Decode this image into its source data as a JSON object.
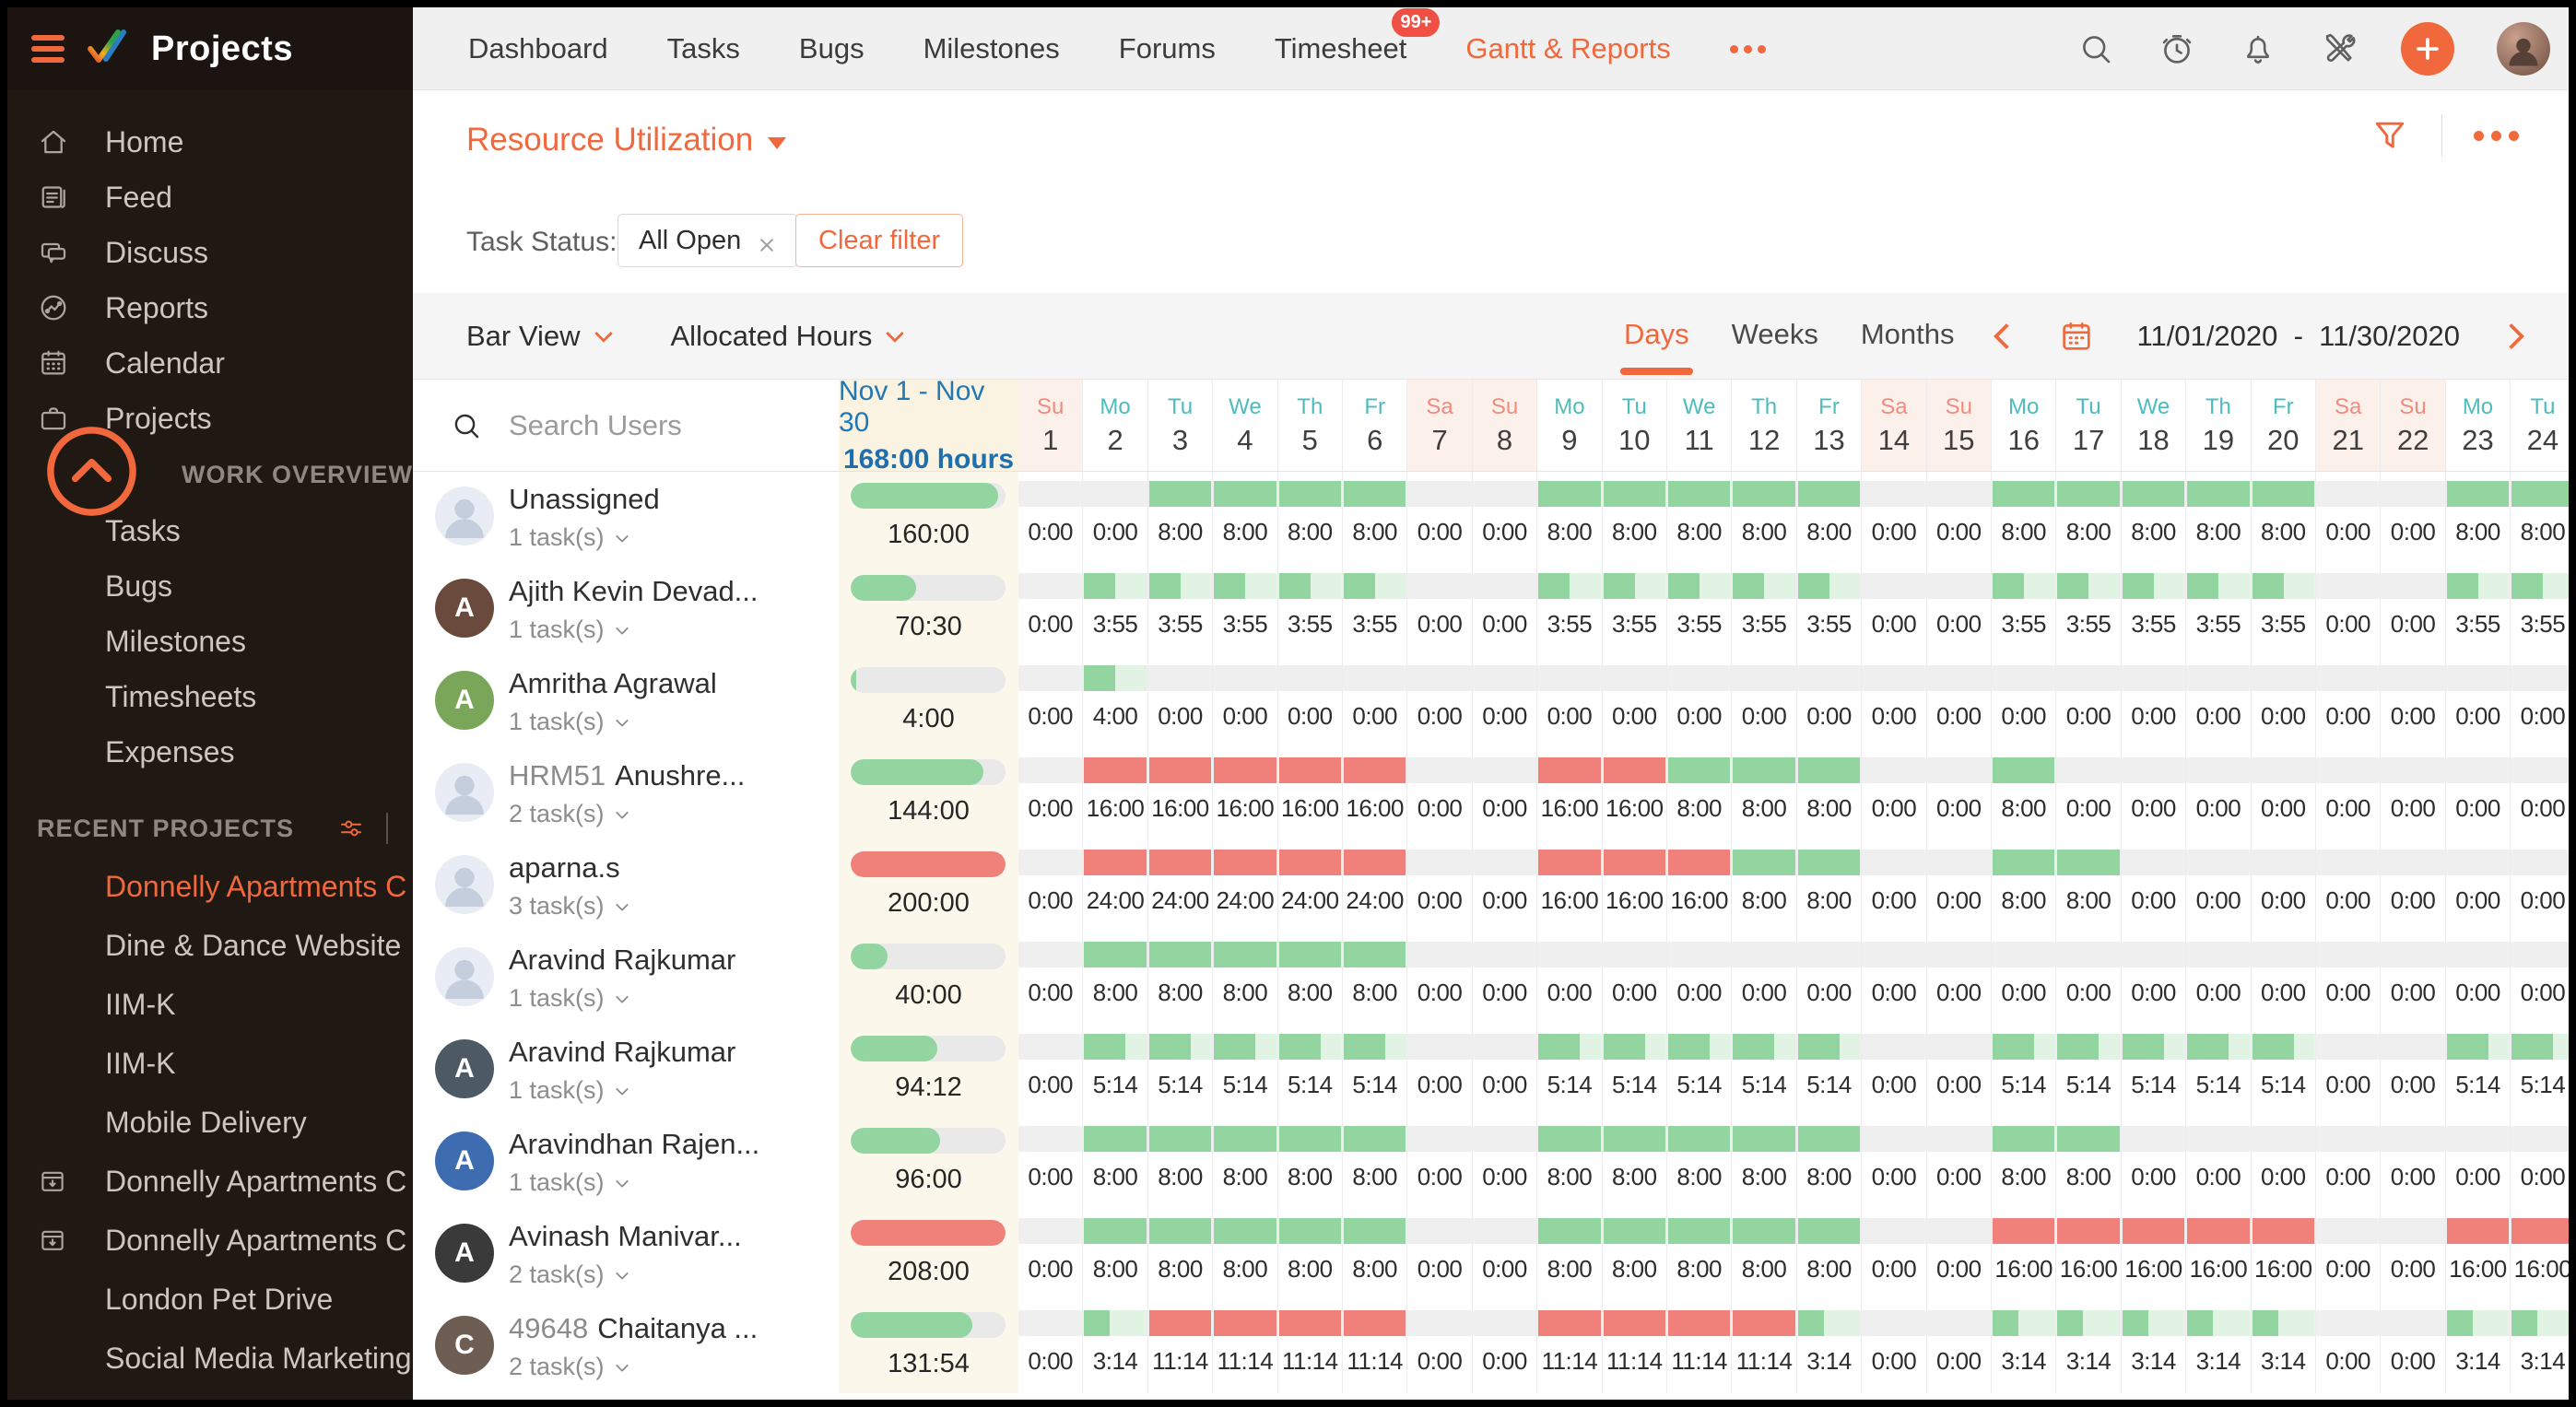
{
  "brand": {
    "title": "Projects"
  },
  "topnav": {
    "items": [
      {
        "label": "Dashboard"
      },
      {
        "label": "Tasks"
      },
      {
        "label": "Bugs"
      },
      {
        "label": "Milestones"
      },
      {
        "label": "Forums"
      },
      {
        "label": "Timesheet",
        "badge": "99+"
      },
      {
        "label": "Gantt & Reports",
        "active": true
      }
    ]
  },
  "sidebar": {
    "main_items": [
      {
        "label": "Home",
        "icon": "home-icon"
      },
      {
        "label": "Feed",
        "icon": "feed-icon"
      },
      {
        "label": "Discuss",
        "icon": "discuss-icon"
      },
      {
        "label": "Reports",
        "icon": "reports-icon"
      },
      {
        "label": "Calendar",
        "icon": "calendar-icon"
      },
      {
        "label": "Projects",
        "icon": "briefcase-icon"
      }
    ],
    "work_overview": {
      "title": "WORK OVERVIEW",
      "items": [
        "Tasks",
        "Bugs",
        "Milestones",
        "Timesheets",
        "Expenses"
      ]
    },
    "recent_projects": {
      "title": "RECENT PROJECTS",
      "items": [
        {
          "label": "Donnelly Apartments C",
          "active": true
        },
        {
          "label": "Dine & Dance Website"
        },
        {
          "label": "IIM-K"
        },
        {
          "label": "IIM-K"
        },
        {
          "label": "Mobile Delivery"
        },
        {
          "label": "Donnelly Apartments C",
          "icon": "archive-icon"
        },
        {
          "label": "Donnelly Apartments C",
          "icon": "archive-icon"
        },
        {
          "label": "London Pet Drive"
        },
        {
          "label": "Social Media Marketing"
        }
      ]
    }
  },
  "page": {
    "title": "Resource Utilization",
    "filter_label": "Task Status:",
    "chip_label": "All Open",
    "clear_label": "Clear filter",
    "view_label": "Bar View",
    "metric_label": "Allocated Hours",
    "tabs": [
      "Days",
      "Weeks",
      "Months"
    ],
    "active_tab": "Days",
    "date_range": "11/01/2020  -  11/30/2020"
  },
  "grid": {
    "search_placeholder": "Search Users",
    "total_h1": "Nov 1 - Nov 30",
    "total_h2": "168:00 hours",
    "days": [
      {
        "dow": "Su",
        "num": "1",
        "weekend": true
      },
      {
        "dow": "Mo",
        "num": "2"
      },
      {
        "dow": "Tu",
        "num": "3"
      },
      {
        "dow": "We",
        "num": "4"
      },
      {
        "dow": "Th",
        "num": "5"
      },
      {
        "dow": "Fr",
        "num": "6"
      },
      {
        "dow": "Sa",
        "num": "7",
        "weekend": true
      },
      {
        "dow": "Su",
        "num": "8",
        "weekend": true
      },
      {
        "dow": "Mo",
        "num": "9"
      },
      {
        "dow": "Tu",
        "num": "10"
      },
      {
        "dow": "We",
        "num": "11"
      },
      {
        "dow": "Th",
        "num": "12"
      },
      {
        "dow": "Fr",
        "num": "13"
      },
      {
        "dow": "Sa",
        "num": "14",
        "weekend": true
      },
      {
        "dow": "Su",
        "num": "15",
        "weekend": true
      },
      {
        "dow": "Mo",
        "num": "16"
      },
      {
        "dow": "Tu",
        "num": "17"
      },
      {
        "dow": "We",
        "num": "18"
      },
      {
        "dow": "Th",
        "num": "19"
      },
      {
        "dow": "Fr",
        "num": "20"
      },
      {
        "dow": "Sa",
        "num": "21",
        "weekend": true
      },
      {
        "dow": "Su",
        "num": "22",
        "weekend": true
      },
      {
        "dow": "Mo",
        "num": "23"
      },
      {
        "dow": "Tu",
        "num": "24"
      }
    ],
    "rows": [
      {
        "prefix": "",
        "name": "Unassigned",
        "tasks": "1 task(s)",
        "total": "160:00",
        "fill": 0.95,
        "tcolor": "g",
        "avatar": {
          "kind": "silhouette"
        },
        "pf": 0,
        "bars": "nnggggnngggggnngggggnngg",
        "vals": [
          "0:00",
          "0:00",
          "8:00",
          "8:00",
          "8:00",
          "8:00",
          "0:00",
          "0:00",
          "8:00",
          "8:00",
          "8:00",
          "8:00",
          "8:00",
          "0:00",
          "0:00",
          "8:00",
          "8:00",
          "8:00",
          "8:00",
          "8:00",
          "0:00",
          "0:00",
          "8:00",
          "8:00"
        ]
      },
      {
        "prefix": "",
        "name": "Ajith Kevin Devad...",
        "tasks": "1 task(s)",
        "total": "70:30",
        "fill": 0.42,
        "tcolor": "g",
        "avatar": {
          "kind": "initial",
          "bg": "#6a4a3c",
          "letter": "A"
        },
        "pf": 0.49,
        "bars": "npppppnnpppppnnpppppnnpp",
        "vals": [
          "0:00",
          "3:55",
          "3:55",
          "3:55",
          "3:55",
          "3:55",
          "0:00",
          "0:00",
          "3:55",
          "3:55",
          "3:55",
          "3:55",
          "3:55",
          "0:00",
          "0:00",
          "3:55",
          "3:55",
          "3:55",
          "3:55",
          "3:55",
          "0:00",
          "0:00",
          "3:55",
          "3:55"
        ]
      },
      {
        "prefix": "",
        "name": "Amritha Agrawal",
        "tasks": "1 task(s)",
        "total": "4:00",
        "fill": 0.035,
        "tcolor": "g",
        "avatar": {
          "kind": "initial",
          "bg": "#7aa65a",
          "letter": "A"
        },
        "pf": 0.5,
        "bars": "npnnnnnnnnnnnnnnnnnnnnnn",
        "vals": [
          "0:00",
          "4:00",
          "0:00",
          "0:00",
          "0:00",
          "0:00",
          "0:00",
          "0:00",
          "0:00",
          "0:00",
          "0:00",
          "0:00",
          "0:00",
          "0:00",
          "0:00",
          "0:00",
          "0:00",
          "0:00",
          "0:00",
          "0:00",
          "0:00",
          "0:00",
          "0:00",
          "0:00"
        ]
      },
      {
        "prefix": "HRM51",
        "name": "Anushre...",
        "tasks": "2 task(s)",
        "total": "144:00",
        "fill": 0.86,
        "tcolor": "g",
        "avatar": {
          "kind": "silhouette"
        },
        "pf": 0,
        "bars": "nrrrrrnnrrgggnngnnnnnnnn",
        "vals": [
          "0:00",
          "16:00",
          "16:00",
          "16:00",
          "16:00",
          "16:00",
          "0:00",
          "0:00",
          "16:00",
          "16:00",
          "8:00",
          "8:00",
          "8:00",
          "0:00",
          "0:00",
          "8:00",
          "0:00",
          "0:00",
          "0:00",
          "0:00",
          "0:00",
          "0:00",
          "0:00",
          "0:00"
        ]
      },
      {
        "prefix": "",
        "name": "aparna.s",
        "tasks": "3 task(s)",
        "total": "200:00",
        "fill": 1,
        "tcolor": "r",
        "avatar": {
          "kind": "silhouette"
        },
        "pf": 0,
        "bars": "nrrrrrnnrrrggnnggnnnnnnn",
        "vals": [
          "0:00",
          "24:00",
          "24:00",
          "24:00",
          "24:00",
          "24:00",
          "0:00",
          "0:00",
          "16:00",
          "16:00",
          "16:00",
          "8:00",
          "8:00",
          "0:00",
          "0:00",
          "8:00",
          "8:00",
          "0:00",
          "0:00",
          "0:00",
          "0:00",
          "0:00",
          "0:00",
          "0:00"
        ]
      },
      {
        "prefix": "",
        "name": "Aravind Rajkumar",
        "tasks": "1 task(s)",
        "total": "40:00",
        "fill": 0.24,
        "tcolor": "g",
        "avatar": {
          "kind": "silhouette"
        },
        "pf": 0,
        "bars": "ngggggnnnnnnnnnnnnnnnnnn",
        "vals": [
          "0:00",
          "8:00",
          "8:00",
          "8:00",
          "8:00",
          "8:00",
          "0:00",
          "0:00",
          "0:00",
          "0:00",
          "0:00",
          "0:00",
          "0:00",
          "0:00",
          "0:00",
          "0:00",
          "0:00",
          "0:00",
          "0:00",
          "0:00",
          "0:00",
          "0:00",
          "0:00",
          "0:00"
        ]
      },
      {
        "prefix": "",
        "name": "Aravind Rajkumar",
        "tasks": "1 task(s)",
        "total": "94:12",
        "fill": 0.56,
        "tcolor": "g",
        "avatar": {
          "kind": "initial",
          "bg": "#4e5a63",
          "letter": "A"
        },
        "pf": 0.655,
        "bars": "npppppnnpppppnnpppppnnpp",
        "vals": [
          "0:00",
          "5:14",
          "5:14",
          "5:14",
          "5:14",
          "5:14",
          "0:00",
          "0:00",
          "5:14",
          "5:14",
          "5:14",
          "5:14",
          "5:14",
          "0:00",
          "0:00",
          "5:14",
          "5:14",
          "5:14",
          "5:14",
          "5:14",
          "0:00",
          "0:00",
          "5:14",
          "5:14"
        ]
      },
      {
        "prefix": "",
        "name": "Aravindhan Rajen...",
        "tasks": "1 task(s)",
        "total": "96:00",
        "fill": 0.575,
        "tcolor": "g",
        "avatar": {
          "kind": "initial",
          "bg": "#3e6cb0",
          "letter": "A"
        },
        "pf": 0,
        "bars": "ngggggnngggggnnggnnnnnnn",
        "vals": [
          "0:00",
          "8:00",
          "8:00",
          "8:00",
          "8:00",
          "8:00",
          "0:00",
          "0:00",
          "8:00",
          "8:00",
          "8:00",
          "8:00",
          "8:00",
          "0:00",
          "0:00",
          "8:00",
          "8:00",
          "0:00",
          "0:00",
          "0:00",
          "0:00",
          "0:00",
          "0:00",
          "0:00"
        ]
      },
      {
        "prefix": "",
        "name": "Avinash Manivar...",
        "tasks": "2 task(s)",
        "total": "208:00",
        "fill": 1,
        "tcolor": "r",
        "avatar": {
          "kind": "initial",
          "bg": "#3a3a3a",
          "letter": "A"
        },
        "pf": 0,
        "bars": "ngggggnngggggnnrrrrrnnrr",
        "vals": [
          "0:00",
          "8:00",
          "8:00",
          "8:00",
          "8:00",
          "8:00",
          "0:00",
          "0:00",
          "8:00",
          "8:00",
          "8:00",
          "8:00",
          "8:00",
          "0:00",
          "0:00",
          "16:00",
          "16:00",
          "16:00",
          "16:00",
          "16:00",
          "0:00",
          "0:00",
          "16:00",
          "16:00"
        ]
      },
      {
        "prefix": "49648",
        "name": "Chaitanya ...",
        "tasks": "2 task(s)",
        "total": "131:54",
        "fill": 0.785,
        "tcolor": "g",
        "avatar": {
          "kind": "initial",
          "bg": "#6e5d52",
          "letter": "C"
        },
        "pf": 0.405,
        "bars": "nprrrrnnrrrrpnnpppppnnpp",
        "vals": [
          "0:00",
          "3:14",
          "11:14",
          "11:14",
          "11:14",
          "11:14",
          "0:00",
          "0:00",
          "11:14",
          "11:14",
          "11:14",
          "11:14",
          "3:14",
          "0:00",
          "0:00",
          "3:14",
          "3:14",
          "3:14",
          "3:14",
          "3:14",
          "0:00",
          "0:00",
          "3:14",
          "3:14"
        ]
      }
    ]
  },
  "colors": {
    "accent": "#f0683c",
    "green": "#93d5a1",
    "pale_green": "#e1f3e3",
    "red": "#f0807a",
    "track": "#efefef",
    "blue": "#2278b5",
    "teal": "#4cbcbd",
    "salmon": "#f28b7d",
    "badge_red": "#f05044"
  }
}
